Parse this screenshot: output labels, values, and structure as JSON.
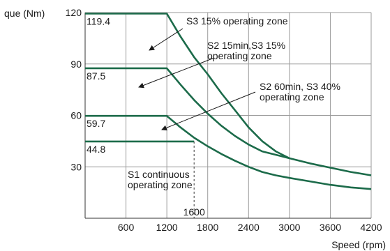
{
  "colors": {
    "curve": "#1c6b4a",
    "grid": "#9a9a9a",
    "axis": "#333333",
    "text": "#1a1a1a"
  },
  "chart_data": {
    "type": "line",
    "title": "",
    "xlabel": "Speed (rpm)",
    "ylabel": "que (Nm)",
    "xlim": [
      0,
      4200
    ],
    "ylim": [
      0,
      120
    ],
    "grid": true,
    "x_ticks": [
      "600",
      "1200",
      "1800",
      "2400",
      "3000",
      "3600",
      "4200"
    ],
    "y_ticks": [
      "30",
      "60",
      "90",
      "120"
    ],
    "series": [
      {
        "x": [
          0,
          1200,
          1400,
          1600,
          1800,
          2000,
          2200,
          2400,
          2600,
          2800,
          3000
        ],
        "y": [
          119.4,
          119.4,
          106,
          94,
          84,
          73,
          63,
          53,
          45,
          39,
          35
        ]
      },
      {
        "x": [
          0,
          1200,
          1400,
          1600,
          1800,
          2000,
          2200,
          2400,
          2600,
          2800,
          3000,
          3300,
          3600,
          3900,
          4200
        ],
        "y": [
          87.5,
          87.5,
          78,
          69,
          61,
          54,
          48,
          43,
          39,
          37,
          35,
          32,
          29.5,
          27,
          25
        ]
      },
      {
        "x": [
          0,
          1200,
          1400,
          1600,
          1800,
          2000,
          2200,
          2400,
          2600,
          2800,
          3000,
          3300,
          3600,
          3900,
          4200
        ],
        "y": [
          59.7,
          59.7,
          53,
          47,
          42,
          37.5,
          33.5,
          30,
          27,
          25,
          23.5,
          21.5,
          19.5,
          18,
          17
        ]
      },
      {
        "x": [
          0,
          1600
        ],
        "y": [
          44.8,
          44.8
        ]
      }
    ],
    "data_labels": [
      "119.4",
      "87.5",
      "59.7",
      "44.8"
    ],
    "reference_line": {
      "x": 1600,
      "label": "1600"
    },
    "annotations": [
      {
        "lines": [
          "S3 15% operating zone"
        ]
      },
      {
        "lines": [
          "S2 15min,S3 15%",
          "operating zone"
        ]
      },
      {
        "lines": [
          "S2 60min, S3 40%",
          "operating zone"
        ]
      },
      {
        "lines": [
          "S1 continuous",
          "operating zone"
        ]
      }
    ]
  }
}
